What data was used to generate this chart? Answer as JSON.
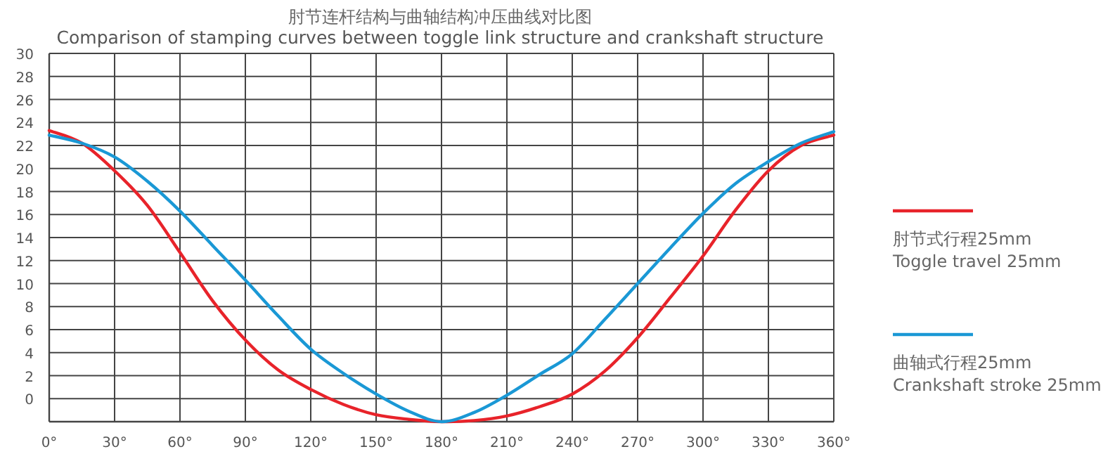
{
  "chart_data": {
    "type": "line",
    "title": "肘节连杆结构与曲轴结构冲压曲线对比图",
    "subtitle": "Comparison of stamping curves between toggle link structure and crankshaft structure",
    "x": [
      0,
      15,
      30,
      45,
      60,
      75,
      90,
      105,
      120,
      135,
      150,
      165,
      180,
      195,
      210,
      225,
      240,
      255,
      270,
      285,
      300,
      315,
      330,
      345,
      360
    ],
    "series": [
      {
        "name": "肘节式行程25mm\nToggle travel 25mm",
        "color": "#e8232a",
        "values": [
          23.3,
          22.2,
          19.8,
          16.8,
          12.7,
          8.5,
          5.1,
          2.5,
          0.8,
          -0.5,
          -1.4,
          -1.8,
          -2.0,
          -1.9,
          -1.5,
          -0.7,
          0.4,
          2.4,
          5.3,
          8.8,
          12.4,
          16.4,
          19.8,
          22.0,
          22.9
        ]
      },
      {
        "name": "曲轴式行程25mm\nCrankshaft stroke 25mm",
        "color": "#1a98d5",
        "values": [
          22.9,
          22.2,
          21.0,
          18.9,
          16.3,
          13.3,
          10.3,
          7.2,
          4.3,
          2.2,
          0.4,
          -1.1,
          -2.0,
          -1.2,
          0.3,
          2.1,
          3.9,
          6.9,
          10.0,
          13.1,
          16.1,
          18.7,
          20.6,
          22.2,
          23.2
        ]
      }
    ],
    "xlim": [
      0,
      360
    ],
    "xticks": [
      {
        "value": 0,
        "label": "0°"
      },
      {
        "value": 30,
        "label": "30°"
      },
      {
        "value": 60,
        "label": "60°"
      },
      {
        "value": 90,
        "label": "90°"
      },
      {
        "value": 120,
        "label": "120°"
      },
      {
        "value": 150,
        "label": "150°"
      },
      {
        "value": 180,
        "label": "180°"
      },
      {
        "value": 210,
        "label": "210°"
      },
      {
        "value": 240,
        "label": "240°"
      },
      {
        "value": 270,
        "label": "270°"
      },
      {
        "value": 300,
        "label": "300°"
      },
      {
        "value": 330,
        "label": "330°"
      },
      {
        "value": 360,
        "label": "360°"
      }
    ],
    "ylim": [
      -2,
      30
    ],
    "yticks": [
      0,
      2,
      4,
      6,
      8,
      10,
      12,
      14,
      16,
      18,
      20,
      22,
      24,
      26,
      28,
      30
    ],
    "grid": true,
    "legend": "right",
    "marker": "none",
    "line_style": "solid"
  }
}
